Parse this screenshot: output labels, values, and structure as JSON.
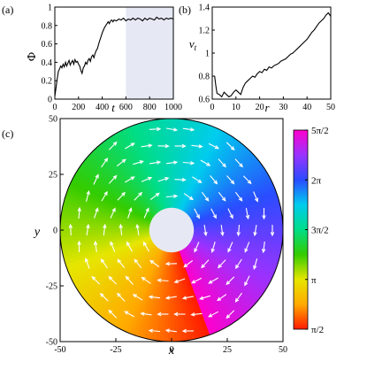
{
  "chart_data": [
    {
      "panel": "(a)",
      "type": "line",
      "xlabel": "t",
      "ylabel": "Φ",
      "xlim": [
        0,
        1000
      ],
      "ylim": [
        0,
        1
      ],
      "xticks": [
        "0",
        "200",
        "400",
        "600",
        "800",
        "1000"
      ],
      "yticks": [
        "0",
        "0.2",
        "0.4",
        "0.6",
        "0.8",
        "1"
      ],
      "shaded_range": [
        600,
        1000
      ],
      "shade_color": "#e6e9f3",
      "x": [
        0,
        10,
        20,
        30,
        40,
        50,
        60,
        70,
        80,
        90,
        100,
        110,
        120,
        130,
        140,
        150,
        160,
        170,
        180,
        190,
        200,
        210,
        220,
        230,
        240,
        250,
        260,
        270,
        280,
        290,
        300,
        310,
        320,
        330,
        340,
        350,
        360,
        370,
        380,
        390,
        400,
        410,
        420,
        430,
        440,
        450,
        460,
        470,
        480,
        490,
        500,
        520,
        540,
        560,
        580,
        600,
        620,
        640,
        660,
        680,
        700,
        720,
        740,
        760,
        780,
        800,
        820,
        840,
        860,
        880,
        900,
        920,
        940,
        960,
        980,
        1000
      ],
      "y": [
        0.03,
        0.12,
        0.22,
        0.3,
        0.33,
        0.36,
        0.34,
        0.38,
        0.35,
        0.4,
        0.36,
        0.39,
        0.42,
        0.37,
        0.4,
        0.42,
        0.38,
        0.43,
        0.4,
        0.41,
        0.38,
        0.36,
        0.31,
        0.28,
        0.34,
        0.36,
        0.4,
        0.38,
        0.42,
        0.44,
        0.41,
        0.46,
        0.48,
        0.45,
        0.5,
        0.53,
        0.55,
        0.6,
        0.64,
        0.68,
        0.72,
        0.75,
        0.78,
        0.8,
        0.82,
        0.84,
        0.82,
        0.85,
        0.86,
        0.84,
        0.86,
        0.85,
        0.87,
        0.86,
        0.88,
        0.85,
        0.87,
        0.86,
        0.88,
        0.86,
        0.88,
        0.87,
        0.85,
        0.88,
        0.86,
        0.88,
        0.87,
        0.86,
        0.89,
        0.87,
        0.88,
        0.86,
        0.88,
        0.87,
        0.88,
        0.87
      ]
    },
    {
      "panel": "(b)",
      "type": "line",
      "xlabel": "r",
      "ylabel": "v_t",
      "xlim": [
        0,
        50
      ],
      "ylim": [
        0.6,
        1.4
      ],
      "xticks": [
        "0",
        "10",
        "20",
        "30",
        "40",
        "50"
      ],
      "yticks": [
        "0.6",
        "0.8",
        "1",
        "1.2",
        "1.4"
      ],
      "x": [
        1,
        1.5,
        2,
        3,
        4,
        5,
        6,
        7,
        8,
        9,
        10,
        11,
        12,
        13,
        14,
        15,
        16,
        17,
        18,
        19,
        20,
        21,
        22,
        23,
        24,
        25,
        26,
        27,
        28,
        29,
        30,
        31,
        32,
        33,
        34,
        35,
        36,
        37,
        38,
        39,
        40,
        41,
        42,
        43,
        44,
        45,
        46,
        47,
        48,
        49,
        50
      ],
      "y": [
        0.8,
        0.72,
        0.65,
        0.64,
        0.62,
        0.66,
        0.64,
        0.62,
        0.63,
        0.66,
        0.68,
        0.66,
        0.64,
        0.7,
        0.74,
        0.76,
        0.78,
        0.8,
        0.79,
        0.82,
        0.84,
        0.83,
        0.86,
        0.85,
        0.88,
        0.87,
        0.89,
        0.9,
        0.91,
        0.93,
        0.94,
        0.95,
        0.97,
        0.99,
        1.0,
        1.02,
        1.04,
        1.06,
        1.08,
        1.1,
        1.12,
        1.15,
        1.18,
        1.2,
        1.23,
        1.26,
        1.28,
        1.3,
        1.33,
        1.35,
        1.32
      ]
    },
    {
      "panel": "(c)",
      "type": "heatmap",
      "description_kind": "annular vector field colored by velocity angle",
      "xlabel": "x",
      "ylabel": "y",
      "xlim": [
        -50,
        50
      ],
      "ylim": [
        -50,
        50
      ],
      "xticks": [
        "-50",
        "-25",
        "0",
        "25",
        "50"
      ],
      "yticks": [
        "50",
        "25",
        "0",
        "-25",
        "-50"
      ],
      "inner_radius": 10,
      "outer_radius": 50,
      "hole_color": "#e6e9f3",
      "arrow_color": "#ffffff",
      "colorbar": {
        "ticks": [
          "5π/2",
          "2π",
          "3π/2",
          "π",
          "π/2"
        ],
        "range": [
          1.5708,
          7.854
        ],
        "stops": [
          "#ff1a00",
          "#ffaa00",
          "#e6e600",
          "#33cc00",
          "#00dd88",
          "#00ccee",
          "#2a4cff",
          "#9933ff",
          "#ff00cc"
        ]
      }
    }
  ]
}
